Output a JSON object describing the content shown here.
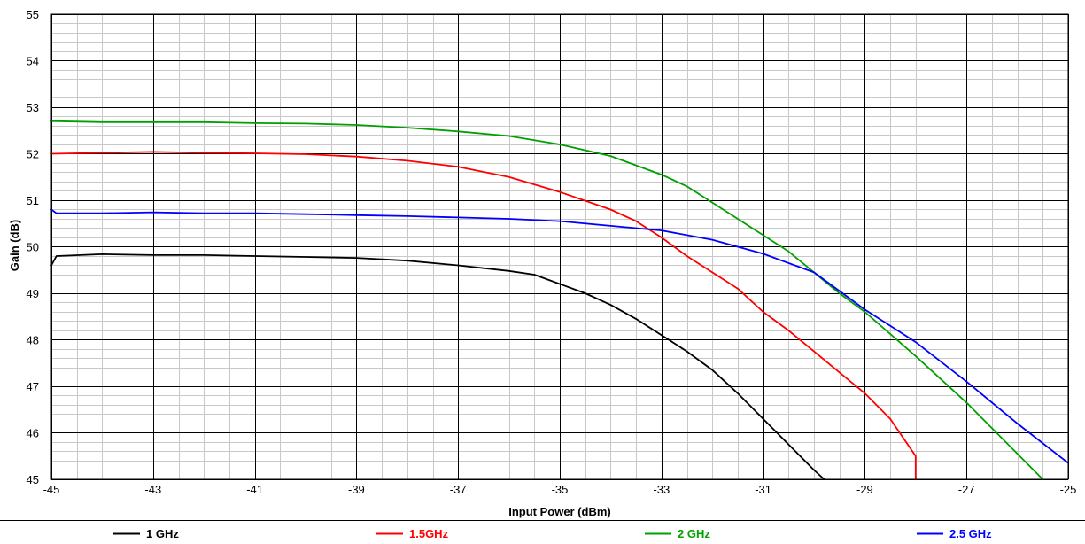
{
  "chart_data": {
    "type": "line",
    "title": "",
    "xlabel": "Input Power (dBm)",
    "ylabel": "Gain (dB)",
    "xlim": [
      -45,
      -25
    ],
    "ylim": [
      45,
      55
    ],
    "x_ticks": [
      "-45",
      "-43",
      "-41",
      "-39",
      "-37",
      "-35",
      "-33",
      "-31",
      "-29",
      "-27",
      "-25"
    ],
    "y_ticks": [
      "45",
      "46",
      "47",
      "48",
      "49",
      "50",
      "51",
      "52",
      "53",
      "54",
      "55"
    ],
    "grid": "major and minor",
    "legend_position": "bottom",
    "series": [
      {
        "name": "1 GHz",
        "color": "#000000",
        "points": [
          [
            -45,
            49.6
          ],
          [
            -44.9,
            49.8
          ],
          [
            -44,
            49.84
          ],
          [
            -43,
            49.82
          ],
          [
            -42,
            49.82
          ],
          [
            -41,
            49.8
          ],
          [
            -40,
            49.78
          ],
          [
            -39,
            49.76
          ],
          [
            -38,
            49.7
          ],
          [
            -37,
            49.6
          ],
          [
            -36,
            49.48
          ],
          [
            -35.5,
            49.4
          ],
          [
            -35,
            49.2
          ],
          [
            -34.5,
            49.0
          ],
          [
            -34,
            48.75
          ],
          [
            -33.5,
            48.45
          ],
          [
            -33,
            48.1
          ],
          [
            -32.5,
            47.75
          ],
          [
            -32,
            47.35
          ],
          [
            -31.5,
            46.85
          ],
          [
            -31,
            46.3
          ],
          [
            -30.5,
            45.75
          ],
          [
            -30,
            45.2
          ],
          [
            -29.8,
            45.0
          ]
        ]
      },
      {
        "name": "1.5GHz",
        "color": "#ff0000",
        "points": [
          [
            -45,
            52.0
          ],
          [
            -44,
            52.02
          ],
          [
            -43,
            52.04
          ],
          [
            -42,
            52.02
          ],
          [
            -41,
            52.01
          ],
          [
            -40,
            51.99
          ],
          [
            -39,
            51.94
          ],
          [
            -38,
            51.85
          ],
          [
            -37,
            51.72
          ],
          [
            -36,
            51.5
          ],
          [
            -35,
            51.18
          ],
          [
            -34,
            50.8
          ],
          [
            -33.5,
            50.55
          ],
          [
            -33,
            50.2
          ],
          [
            -32.5,
            49.8
          ],
          [
            -32,
            49.45
          ],
          [
            -31.5,
            49.1
          ],
          [
            -31,
            48.6
          ],
          [
            -30.5,
            48.2
          ],
          [
            -30,
            47.75
          ],
          [
            -29.5,
            47.3
          ],
          [
            -29,
            46.85
          ],
          [
            -28.5,
            46.3
          ],
          [
            -28,
            45.5
          ],
          [
            -28.0,
            45.0
          ]
        ]
      },
      {
        "name": "2 GHz",
        "color": "#00a000",
        "points": [
          [
            -45,
            52.7
          ],
          [
            -44,
            52.68
          ],
          [
            -43,
            52.68
          ],
          [
            -42,
            52.68
          ],
          [
            -41,
            52.66
          ],
          [
            -40,
            52.65
          ],
          [
            -39,
            52.62
          ],
          [
            -38,
            52.56
          ],
          [
            -37,
            52.48
          ],
          [
            -36,
            52.38
          ],
          [
            -35,
            52.2
          ],
          [
            -34,
            51.95
          ],
          [
            -33,
            51.55
          ],
          [
            -32.5,
            51.3
          ],
          [
            -32,
            50.95
          ],
          [
            -31.5,
            50.6
          ],
          [
            -31,
            50.25
          ],
          [
            -30.5,
            49.9
          ],
          [
            -30,
            49.45
          ],
          [
            -29.5,
            49.0
          ],
          [
            -29,
            48.6
          ],
          [
            -28,
            47.65
          ],
          [
            -27,
            46.65
          ],
          [
            -26,
            45.55
          ],
          [
            -25.5,
            45.0
          ]
        ]
      },
      {
        "name": "2.5 GHz",
        "color": "#0000ff",
        "points": [
          [
            -45,
            50.8
          ],
          [
            -44.9,
            50.72
          ],
          [
            -44,
            50.72
          ],
          [
            -43,
            50.74
          ],
          [
            -42,
            50.72
          ],
          [
            -41,
            50.72
          ],
          [
            -40,
            50.7
          ],
          [
            -39,
            50.68
          ],
          [
            -38,
            50.66
          ],
          [
            -37,
            50.63
          ],
          [
            -36,
            50.6
          ],
          [
            -35,
            50.55
          ],
          [
            -34,
            50.45
          ],
          [
            -33,
            50.35
          ],
          [
            -32,
            50.15
          ],
          [
            -31,
            49.85
          ],
          [
            -30,
            49.45
          ],
          [
            -29,
            48.65
          ],
          [
            -28,
            47.95
          ],
          [
            -27,
            47.1
          ],
          [
            -26,
            46.2
          ],
          [
            -25,
            45.35
          ]
        ]
      }
    ]
  }
}
